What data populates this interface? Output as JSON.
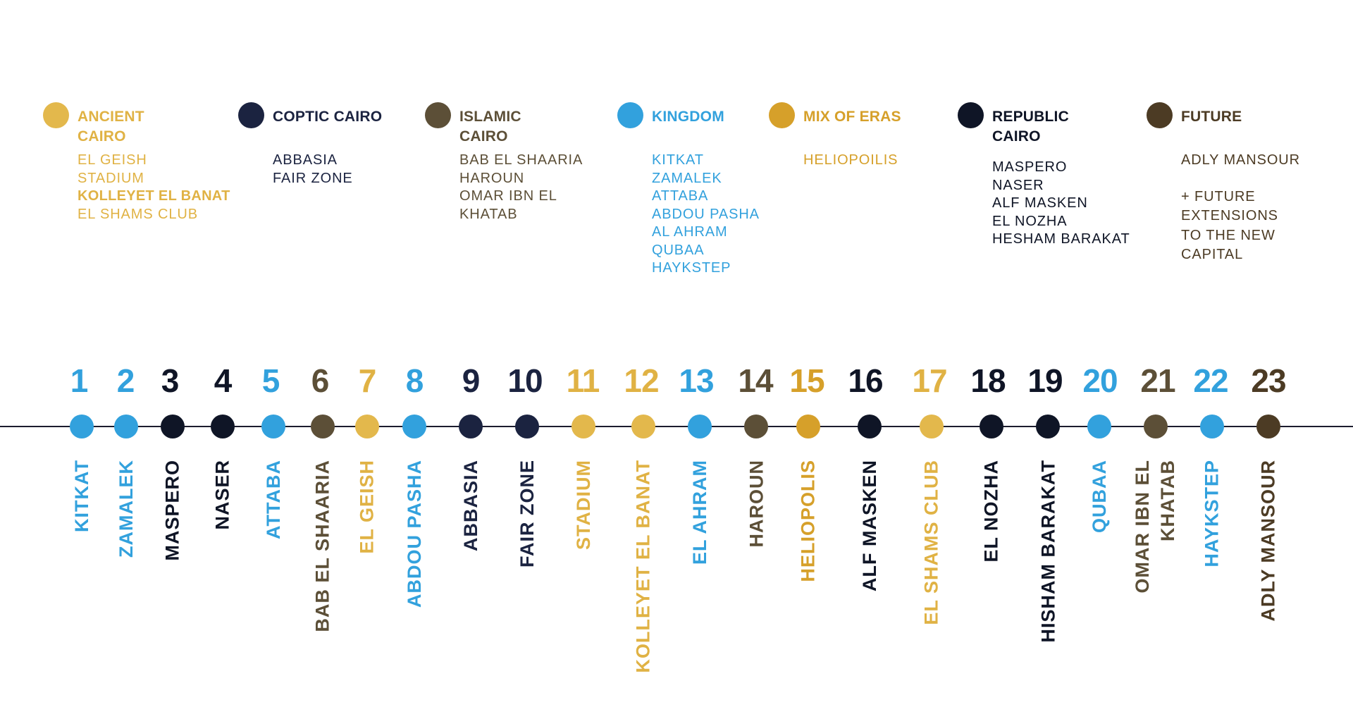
{
  "colors": {
    "ancient": "#e0b244",
    "coptic": "#1b2340",
    "islamic": "#5c4f37",
    "kingdom": "#32a1dd",
    "mix": "#d6a02a",
    "republic": "#0f1526",
    "future": "#4c3b24"
  },
  "legend": [
    {
      "id": "ancient",
      "name": "ANCIENT CAIRO",
      "color": "#e0b244",
      "text_color": "#e0b244",
      "dot_color": "#e3b84c",
      "stations": [
        "EL GEISH",
        "STADIUM",
        "KOLLEYET EL BANAT",
        "EL SHAMS CLUB"
      ]
    },
    {
      "id": "coptic",
      "name": "COPTIC CAIRO",
      "color": "#1b2340",
      "text_color": "#1b2340",
      "dot_color": "#1b2340",
      "stations": [
        "ABBASIA",
        "FAIR ZONE"
      ]
    },
    {
      "id": "islamic",
      "name": "ISLAMIC CAIRO",
      "color": "#5c4f37",
      "text_color": "#5c4f37",
      "dot_color": "#5c4f37",
      "stations": [
        "BAB EL SHAARIA",
        "HAROUN",
        "OMAR IBN EL",
        "KHATAB"
      ]
    },
    {
      "id": "kingdom",
      "name": "KINGDOM",
      "color": "#32a1dd",
      "text_color": "#32a1dd",
      "dot_color": "#32a1dd",
      "stations": [
        "KITKAT",
        "ZAMALEK",
        "ATTABA",
        "ABDOU PASHA",
        "AL AHRAM",
        "QUBAA",
        "HAYKSTEP"
      ]
    },
    {
      "id": "mix",
      "name": "MIX OF ERAS",
      "color": "#d6a02a",
      "text_color": "#d6a02a",
      "dot_color": "#d6a02a",
      "stations": [
        "HELIOPOILIS"
      ]
    },
    {
      "id": "republic",
      "name": "REPUBLIC CAIRO",
      "color": "#0f1526",
      "text_color": "#0f1526",
      "dot_color": "#0f1526",
      "stations": [
        "MASPERO",
        "NASER",
        "ALF MASKEN",
        "EL NOZHA",
        "HESHAM BARAKAT"
      ]
    },
    {
      "id": "future",
      "name": "FUTURE",
      "color": "#4c3b24",
      "text_color": "#4c3b24",
      "dot_color": "#4c3b24",
      "stations": [
        "ADLY MANSOUR",
        "+ FUTURE EXTENSIONS TO THE NEW CAPITAL"
      ]
    }
  ],
  "stops": [
    {
      "n": "1",
      "name": "KITKAT",
      "cat": "kingdom"
    },
    {
      "n": "2",
      "name": "ZAMALEK",
      "cat": "kingdom"
    },
    {
      "n": "3",
      "name": "MASPERO",
      "cat": "republic"
    },
    {
      "n": "4",
      "name": "NASER",
      "cat": "republic"
    },
    {
      "n": "5",
      "name": "ATTABA",
      "cat": "kingdom"
    },
    {
      "n": "6",
      "name": "BAB EL SHAARIA",
      "cat": "islamic"
    },
    {
      "n": "7",
      "name": "EL GEISH",
      "cat": "ancient"
    },
    {
      "n": "8",
      "name": "ABDOU PASHA",
      "cat": "kingdom"
    },
    {
      "n": "9",
      "name": "ABBASIA",
      "cat": "coptic"
    },
    {
      "n": "10",
      "name": "FAIR ZONE",
      "cat": "coptic"
    },
    {
      "n": "11",
      "name": "STADIUM",
      "cat": "ancient"
    },
    {
      "n": "12",
      "name": "KOLLEYET EL BANAT",
      "cat": "ancient"
    },
    {
      "n": "13",
      "name": "EL AHRAM",
      "cat": "kingdom"
    },
    {
      "n": "14",
      "name": "HAROUN",
      "cat": "islamic"
    },
    {
      "n": "15",
      "name": "HELIOPOLIS",
      "cat": "mix"
    },
    {
      "n": "16",
      "name": "ALF MASKEN",
      "cat": "republic"
    },
    {
      "n": "17",
      "name": "EL SHAMS CLUB",
      "cat": "ancient"
    },
    {
      "n": "18",
      "name": "EL NOZHA",
      "cat": "republic"
    },
    {
      "n": "19",
      "name": "HISHAM BARAKAT",
      "cat": "republic"
    },
    {
      "n": "20",
      "name": "QUBAA",
      "cat": "kingdom"
    },
    {
      "n": "21",
      "name": "OMAR IBN EL KHATAB",
      "cat": "islamic"
    },
    {
      "n": "22",
      "name": "HAYKSTEP",
      "cat": "kingdom"
    },
    {
      "n": "23",
      "name": "ADLY MANSOUR",
      "cat": "future"
    }
  ]
}
